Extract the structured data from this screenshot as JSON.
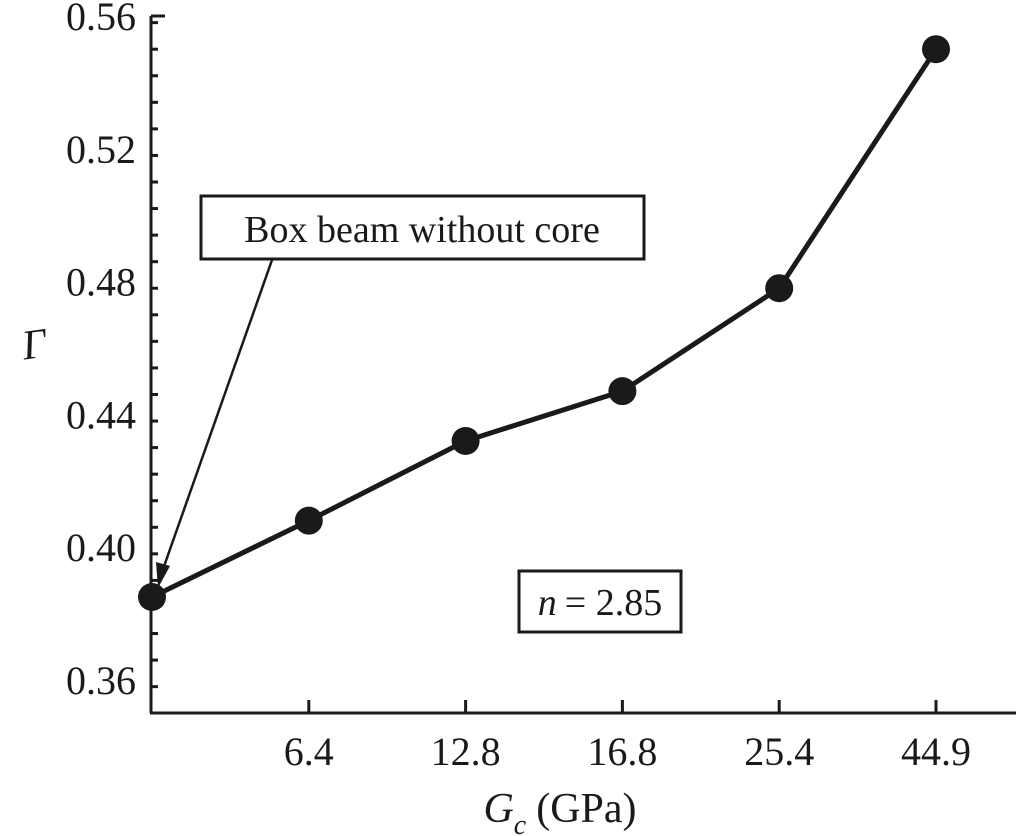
{
  "chart_data": {
    "type": "line",
    "title": "",
    "xlabel": "G_c (GPa)",
    "xlabel_main": "G",
    "xlabel_sub": "c",
    "xlabel_unit": "(GPa)",
    "ylabel": "Γ",
    "categories": [
      "",
      "6.4",
      "12.8",
      "16.8",
      "25.4",
      "44.9"
    ],
    "x": [
      0,
      6.4,
      12.8,
      16.8,
      25.4,
      44.9
    ],
    "series": [
      {
        "name": "Γ vs G_c",
        "values": [
          0.385,
          0.408,
          0.432,
          0.447,
          0.478,
          0.55
        ],
        "marker": "filled-circle",
        "color": "#1a1a1a"
      }
    ],
    "ylim": [
      0.35,
      0.56
    ],
    "yticks": [
      "0.36",
      "0.40",
      "0.44",
      "0.48",
      "0.52",
      "0.56"
    ],
    "ytick_values": [
      0.36,
      0.4,
      0.44,
      0.48,
      0.52,
      0.56
    ],
    "y_minor_step": 0.008,
    "grid": false,
    "legend": null,
    "annotations": [
      {
        "text": "Box beam without core",
        "type": "boxed-arrow",
        "points_to_index": 0
      },
      {
        "text": "n = 2.85",
        "type": "boxed-label",
        "var": "n",
        "eq": "= 2.85"
      }
    ]
  }
}
